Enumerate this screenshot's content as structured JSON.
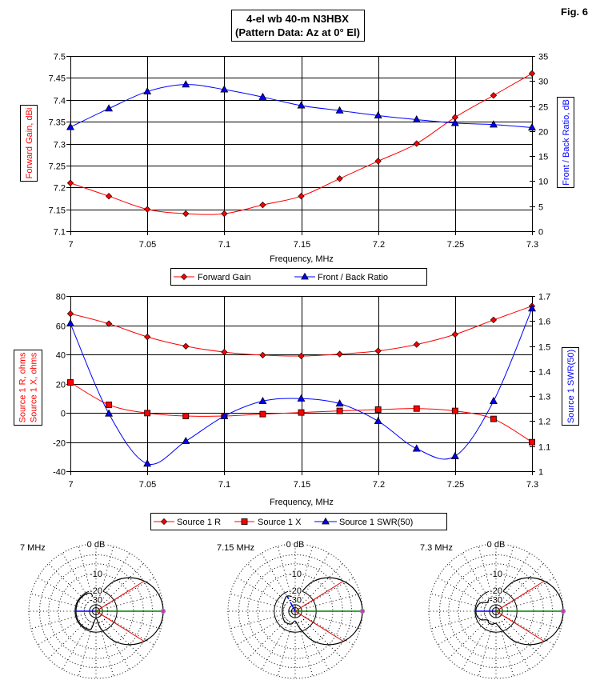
{
  "header": {
    "title_line1": "4-el wb 40-m N3HBX",
    "title_line2": "(Pattern Data: Az at 0° El)",
    "fig_label": "Fig. 6"
  },
  "colors": {
    "series_red": "#FF0000",
    "series_blue": "#0000FF",
    "beam_edge_line": "#E00000",
    "max_gain_line": "#008000",
    "rear_line": "#0000FF",
    "max_marker": "#CC33CC",
    "grid": "#000000",
    "background": "#FFFFFF"
  },
  "chart_data": [
    {
      "type": "line",
      "id": "gain-fb",
      "title": "4-el wb 40-m N3HBX (Pattern Data: Az at 0° El)",
      "xlabel": "Frequency, MHz",
      "ylabel": "Forward Gain, dBi",
      "y2label": "Front / Back Ratio, dB",
      "xlim": [
        7,
        7.3
      ],
      "ylim": [
        7.1,
        7.5
      ],
      "y2lim": [
        0,
        35
      ],
      "grid": true,
      "legend": "bottom",
      "xticks": [
        {
          "value": 7,
          "label": "7"
        },
        {
          "value": 7.05,
          "label": "7.05"
        },
        {
          "value": 7.1,
          "label": "7.1"
        },
        {
          "value": 7.15,
          "label": "7.15"
        },
        {
          "value": 7.2,
          "label": "7.2"
        },
        {
          "value": 7.25,
          "label": "7.25"
        },
        {
          "value": 7.3,
          "label": "7.3"
        }
      ],
      "yticks": [
        {
          "value": 7.5,
          "label": "7.5"
        },
        {
          "value": 7.45,
          "label": "7.45"
        },
        {
          "value": 7.4,
          "label": "7.4"
        },
        {
          "value": 7.35,
          "label": "7.35"
        },
        {
          "value": 7.3,
          "label": "7.3"
        },
        {
          "value": 7.25,
          "label": "7.25"
        },
        {
          "value": 7.2,
          "label": "7.2"
        },
        {
          "value": 7.15,
          "label": "7.15"
        },
        {
          "value": 7.1,
          "label": "7.1"
        }
      ],
      "y2ticks": [
        {
          "value": 35,
          "label": "35"
        },
        {
          "value": 30,
          "label": "30"
        },
        {
          "value": 25,
          "label": "25"
        },
        {
          "value": 20,
          "label": "20"
        },
        {
          "value": 15,
          "label": "15"
        },
        {
          "value": 10,
          "label": "10"
        },
        {
          "value": 5,
          "label": "5"
        },
        {
          "value": 0,
          "label": "0"
        }
      ],
      "x": [
        7,
        7.025,
        7.05,
        7.075,
        7.1,
        7.125,
        7.15,
        7.175,
        7.2,
        7.225,
        7.25,
        7.275,
        7.3
      ],
      "series": [
        {
          "name": "Forward Gain",
          "axis": "left",
          "color": "#FF0000",
          "marker": "diamond",
          "values": [
            7.21,
            7.18,
            7.15,
            7.14,
            7.14,
            7.16,
            7.18,
            7.22,
            7.26,
            7.3,
            7.36,
            7.41,
            7.46
          ]
        },
        {
          "name": "Front / Back Ratio",
          "axis": "right",
          "color": "#0000FF",
          "marker": "triangle",
          "values": [
            20.8,
            24.5,
            27.9,
            29.3,
            28.3,
            26.8,
            25.1,
            24.1,
            23.1,
            22.3,
            21.6,
            21.3,
            20.7
          ]
        }
      ]
    },
    {
      "type": "line",
      "id": "source-impedance-swr",
      "xlabel": "Frequency, MHz",
      "ylabel_lines": [
        "Source 1 R,  ohms",
        "Source 1 X,  ohms"
      ],
      "y2label": "Source 1 SWR(50)",
      "xlim": [
        7,
        7.3
      ],
      "ylim": [
        -40,
        80
      ],
      "y2lim": [
        1,
        1.7
      ],
      "grid": true,
      "legend": "bottom",
      "xticks": [
        {
          "value": 7,
          "label": "7"
        },
        {
          "value": 7.05,
          "label": "7.05"
        },
        {
          "value": 7.1,
          "label": "7.1"
        },
        {
          "value": 7.15,
          "label": "7.15"
        },
        {
          "value": 7.2,
          "label": "7.2"
        },
        {
          "value": 7.25,
          "label": "7.25"
        },
        {
          "value": 7.3,
          "label": "7.3"
        }
      ],
      "yticks": [
        {
          "value": 80,
          "label": "80"
        },
        {
          "value": 60,
          "label": "60"
        },
        {
          "value": 40,
          "label": "40"
        },
        {
          "value": 20,
          "label": "20"
        },
        {
          "value": 0,
          "label": "0"
        },
        {
          "value": -20,
          "label": "-20"
        },
        {
          "value": -40,
          "label": "-40"
        }
      ],
      "y2ticks": [
        {
          "value": 1.7,
          "label": "1.7"
        },
        {
          "value": 1.6,
          "label": "1.6"
        },
        {
          "value": 1.5,
          "label": "1.5"
        },
        {
          "value": 1.4,
          "label": "1.4"
        },
        {
          "value": 1.3,
          "label": "1.3"
        },
        {
          "value": 1.2,
          "label": "1.2"
        },
        {
          "value": 1.1,
          "label": "1.1"
        },
        {
          "value": 1,
          "label": "1"
        }
      ],
      "x": [
        7,
        7.025,
        7.05,
        7.075,
        7.1,
        7.125,
        7.15,
        7.175,
        7.2,
        7.225,
        7.25,
        7.275,
        7.3
      ],
      "series": [
        {
          "name": "Source 1 R",
          "axis": "left",
          "color": "#FF0000",
          "marker": "diamond",
          "values": [
            67.9,
            61.0,
            52.0,
            45.6,
            41.6,
            39.5,
            38.9,
            40.2,
            42.4,
            46.8,
            53.7,
            63.6,
            73.1
          ]
        },
        {
          "name": "Source 1 X",
          "axis": "left",
          "color": "#FF0000",
          "marker": "square",
          "values": [
            20.8,
            5.5,
            -0.2,
            -2.2,
            -2.2,
            -0.9,
            0.2,
            1.3,
            2.2,
            2.9,
            1.3,
            -4.2,
            -20.1
          ]
        },
        {
          "name": "Source 1 SWR(50)",
          "axis": "right",
          "color": "#0000FF",
          "marker": "triangle",
          "values": [
            1.59,
            1.23,
            1.03,
            1.12,
            1.22,
            1.28,
            1.29,
            1.27,
            1.2,
            1.09,
            1.06,
            1.28,
            1.65
          ]
        }
      ]
    },
    {
      "type": "polar",
      "id": "pattern-7mhz",
      "label": "7 MHz",
      "scale": "ARRL log",
      "ring_labels": [
        {
          "db": 0,
          "label": "0 dB"
        },
        {
          "db": -10,
          "label": "-10"
        },
        {
          "db": -20,
          "label": "-20"
        },
        {
          "db": -30,
          "label": "-30"
        }
      ],
      "azimuth_deg": [
        0,
        15,
        30,
        45,
        60,
        75,
        90,
        105,
        120,
        135,
        150,
        165,
        180,
        195,
        210,
        225,
        240,
        255,
        270,
        285,
        300,
        315,
        330,
        345
      ],
      "gain_db": [
        0,
        -0.6,
        -2.5,
        -6.0,
        -11.9,
        -23,
        -38,
        -22.5,
        -21.0,
        -20.8,
        -20.6,
        -20.7,
        -20.8,
        -20.7,
        -20.6,
        -20.8,
        -21.0,
        -22.5,
        -38,
        -23,
        -11.9,
        -6.0,
        -2.5,
        -0.6
      ],
      "max_gain_direction_deg": 0,
      "max_gain_db": 0,
      "half_power_beamwidth_deg": 64,
      "half_power_db": -3,
      "rear_direction_deg": 180,
      "rear_gain_db": -20.8
    },
    {
      "type": "polar",
      "id": "pattern-7-15mhz",
      "label": "7.15 MHz",
      "scale": "ARRL log",
      "ring_labels": [
        {
          "db": 0,
          "label": "0 dB"
        },
        {
          "db": -10,
          "label": "-10"
        },
        {
          "db": -20,
          "label": "-20"
        },
        {
          "db": -30,
          "label": "-30"
        }
      ],
      "azimuth_deg": [
        0,
        15,
        30,
        45,
        60,
        75,
        90,
        105,
        120,
        135,
        150,
        165,
        180,
        195,
        210,
        225,
        240,
        255,
        270,
        285,
        300,
        315,
        330,
        345
      ],
      "gain_db": [
        0,
        -0.6,
        -2.5,
        -6.0,
        -11.9,
        -23,
        -32,
        -25.5,
        -23.4,
        -25.5,
        -27.0,
        -28.0,
        -28.2,
        -28.0,
        -27.0,
        -26.0,
        -26.5,
        -28.0,
        -33,
        -23,
        -11.9,
        -6.0,
        -2.5,
        -0.6
      ],
      "max_gain_direction_deg": 0,
      "max_gain_db": 0,
      "half_power_beamwidth_deg": 64,
      "half_power_db": -3,
      "rear_direction_deg": 118,
      "rear_gain_db": -23.4
    },
    {
      "type": "polar",
      "id": "pattern-7-3mhz",
      "label": "7.3 MHz",
      "scale": "ARRL log",
      "ring_labels": [
        {
          "db": 0,
          "label": "0 dB"
        },
        {
          "db": -10,
          "label": "-10"
        },
        {
          "db": -20,
          "label": "-20"
        },
        {
          "db": -30,
          "label": "-30"
        }
      ],
      "azimuth_deg": [
        0,
        15,
        30,
        45,
        60,
        75,
        90,
        105,
        120,
        135,
        150,
        165,
        180,
        195,
        210,
        225,
        240,
        255,
        270,
        285,
        300,
        315,
        330,
        345
      ],
      "gain_db": [
        0,
        -0.6,
        -2.5,
        -6.0,
        -11.9,
        -22.5,
        -29,
        -27.5,
        -27.0,
        -29.0,
        -23.5,
        -21.2,
        -20.7,
        -21.2,
        -23.5,
        -29.0,
        -27.0,
        -27.5,
        -29,
        -22.5,
        -11.9,
        -6.0,
        -2.5,
        -0.6
      ],
      "max_gain_direction_deg": 0,
      "max_gain_db": 0,
      "half_power_beamwidth_deg": 64,
      "half_power_db": -3,
      "rear_direction_deg": 180,
      "rear_gain_db": -20.7
    }
  ]
}
